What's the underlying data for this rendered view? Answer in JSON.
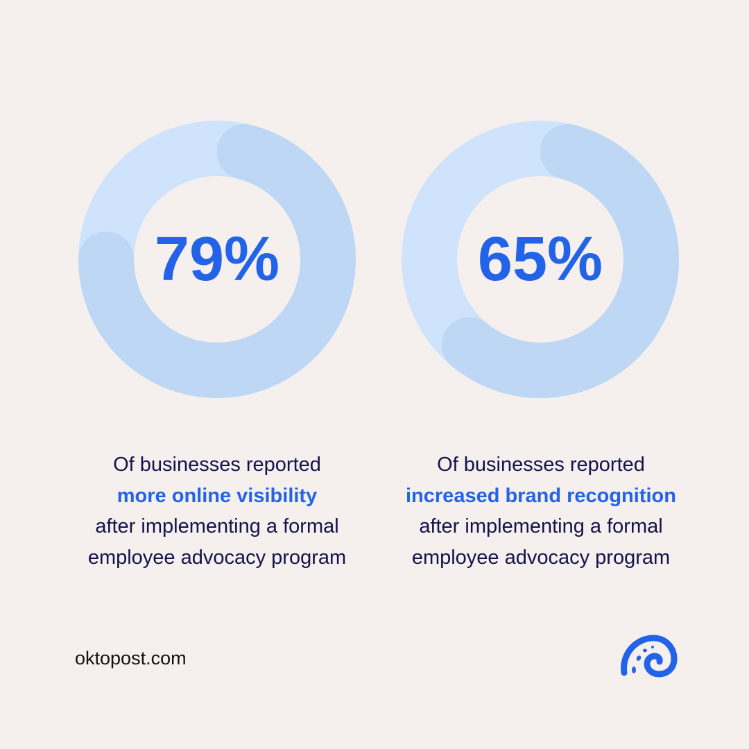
{
  "chart_data": [
    {
      "type": "donut",
      "value_percent": 79,
      "label": "79%",
      "caption": [
        "Of businesses reported",
        "more online visibility",
        "after implementing a formal",
        "employee advocacy program"
      ]
    },
    {
      "type": "donut",
      "value_percent": 65,
      "label": "65%",
      "caption": [
        "Of businesses reported",
        "increased brand recognition",
        "after implementing a formal",
        "employee advocacy program"
      ]
    }
  ],
  "colors": {
    "background": "#f5f0ee",
    "track": "#cfe3fd",
    "progress": "#bed7f4",
    "accent": "#2363e8",
    "text": "#15134a"
  },
  "footer": {
    "site": "oktopost.com",
    "logo_icon": "oktopost-logo-icon"
  }
}
